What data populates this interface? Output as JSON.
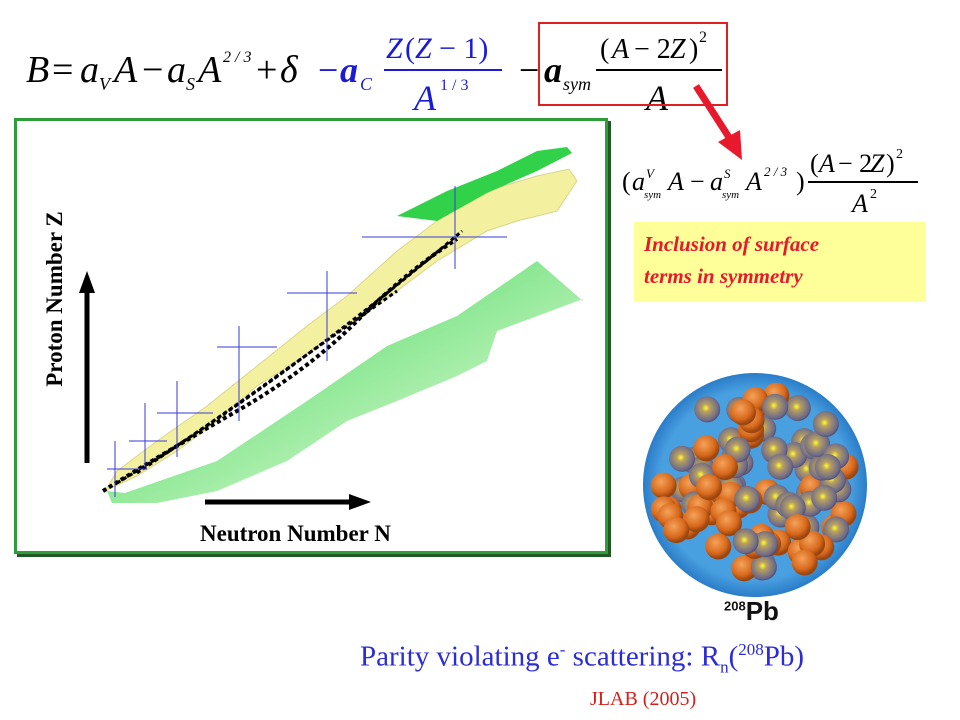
{
  "formula": {
    "lhs": "B",
    "terms_black": "= a_V A − a_S A^{2/3} + δ",
    "coulomb_num": "Z(Z − 1)",
    "coulomb_den": "A^{1/3}",
    "coulomb_coef": "− a_C",
    "sym_coef": "− a_sym",
    "sym_num": "(A − 2Z)^2",
    "sym_den": "A"
  },
  "surface_formula": {
    "expr": "(a^V_sym A − a^S_sym A^{2/3})",
    "num": "(A − 2Z)^2",
    "den": "A^2"
  },
  "note": {
    "line1": "Inclusion of surface",
    "line2": "terms in symmetry"
  },
  "chart": {
    "ylabel": "Proton Number Z",
    "xlabel": "Neutron Number N"
  },
  "nucleus": {
    "mass_number": "208",
    "element": "Pb"
  },
  "caption": {
    "prefix": "Parity violating e",
    "sup": "-",
    "mid": " scattering: R",
    "sub": "n",
    "paren_open": "(",
    "iso_mass": "208",
    "iso_el": "Pb)"
  },
  "credit": "JLAB (2005)",
  "colors": {
    "frame": "#2f9e3a",
    "stable": "#000000",
    "known": "#f3f0a0",
    "predicted": "#32d14a",
    "highlight": "#e8192c",
    "caption": "#2b2bd8",
    "note_bg": "#ffff99"
  }
}
